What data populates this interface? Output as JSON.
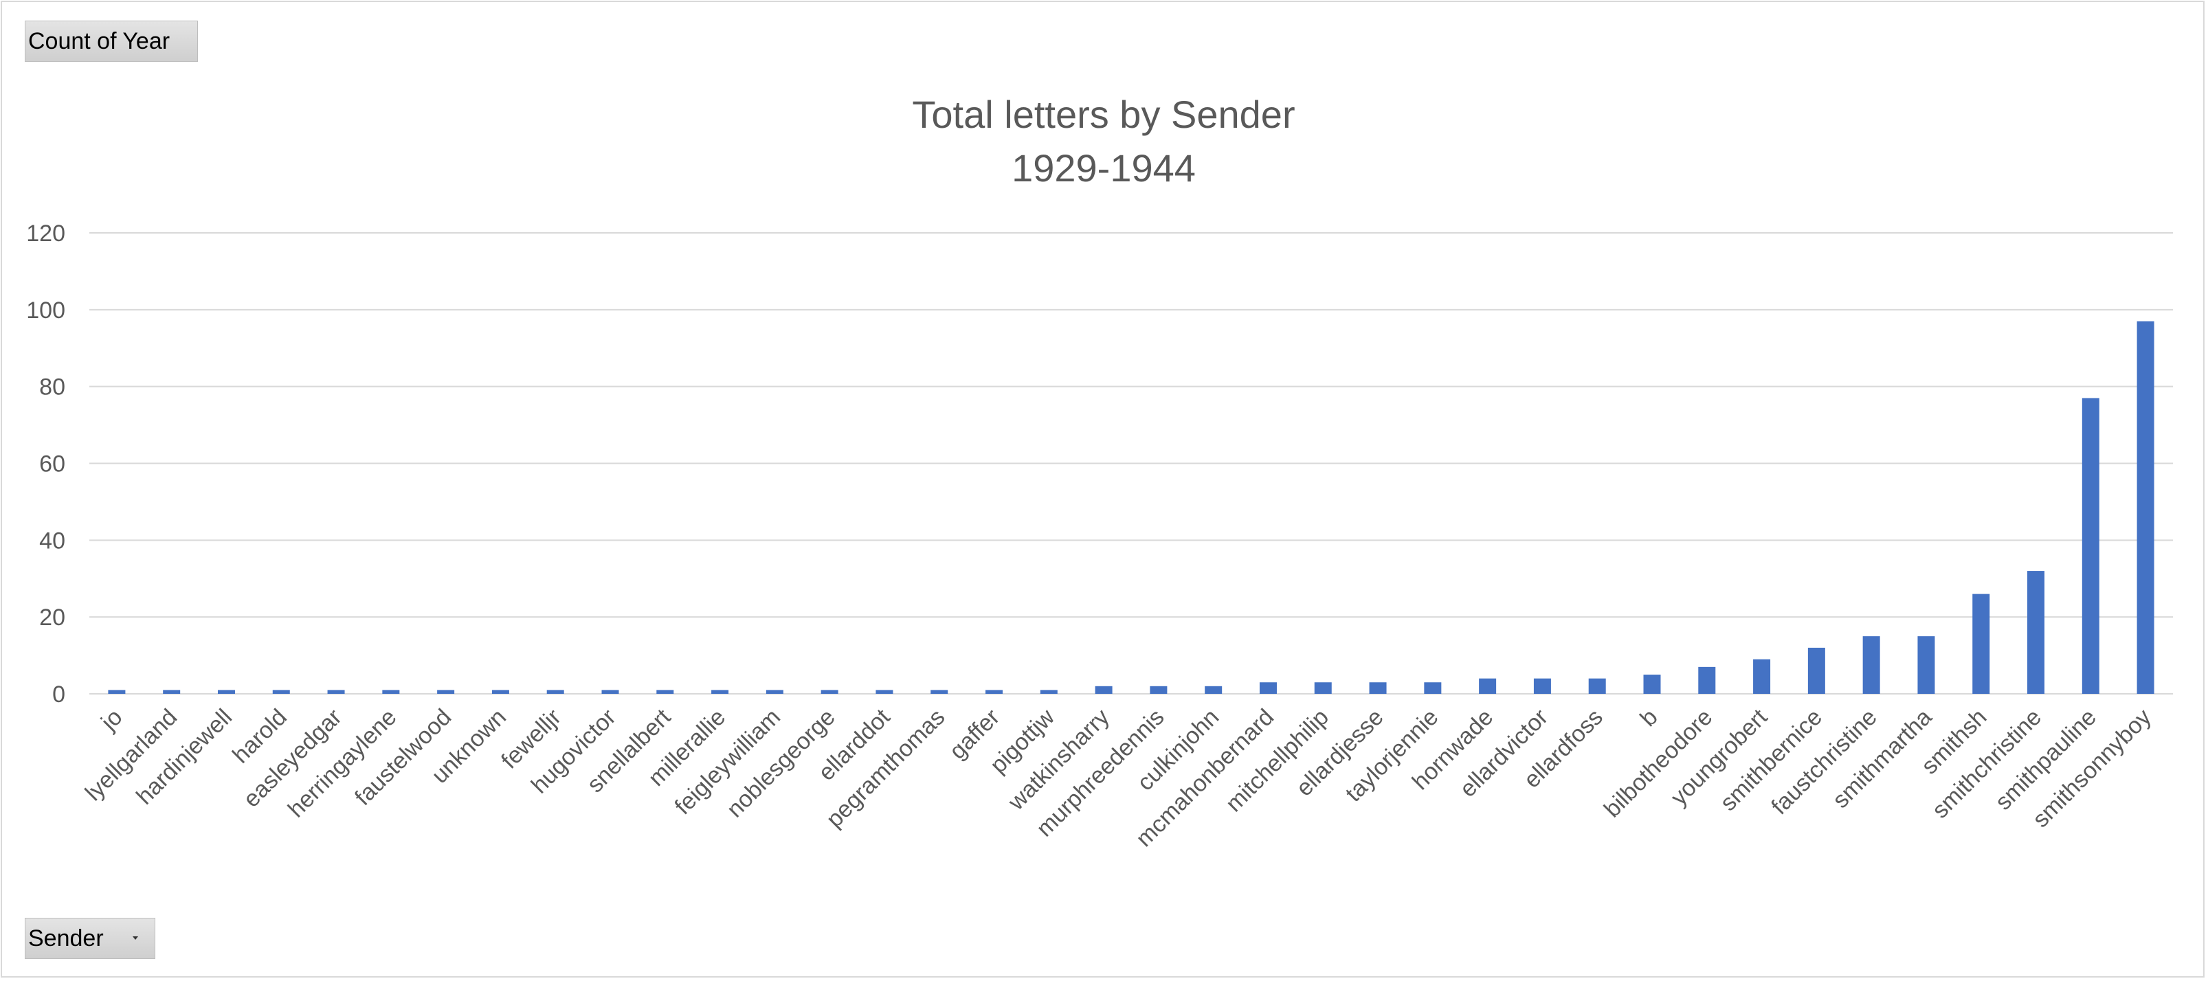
{
  "pivot": {
    "value_field": "Count of Year",
    "axis_field": "Sender"
  },
  "colors": {
    "bar": "#4472c4"
  },
  "chart_data": {
    "type": "bar",
    "title": [
      "Total letters by Sender",
      "1929-1944"
    ],
    "xlabel": "",
    "ylabel": "",
    "ylim": [
      0,
      120
    ],
    "yticks": [
      0,
      20,
      40,
      60,
      80,
      100,
      120
    ],
    "grid": true,
    "categories": [
      "jo",
      "lyellgarland",
      "hardinjewell",
      "harold",
      "easleyedgar",
      "herringaylene",
      "faustelwood",
      "unknown",
      "fewelljr",
      "hugovictor",
      "snellalbert",
      "millerallie",
      "feigleywilliam",
      "noblesgeorge",
      "ellarddot",
      "pegramthomas",
      "gaffer",
      "pigottjw",
      "watkinsharry",
      "murphreedennis",
      "culkinjohn",
      "mcmahonbernard",
      "mitchellphilip",
      "ellardjesse",
      "taylorjennie",
      "hornwade",
      "ellardvictor",
      "ellardfoss",
      "b",
      "bilbotheodore",
      "youngrobert",
      "smithbernice",
      "faustchristine",
      "smithmartha",
      "smithsh",
      "smithchristine",
      "smithpauline",
      "smithsonnyboy"
    ],
    "series": [
      {
        "values": [
          1,
          1,
          1,
          1,
          1,
          1,
          1,
          1,
          1,
          1,
          1,
          1,
          1,
          1,
          1,
          1,
          1,
          1,
          2,
          2,
          2,
          3,
          3,
          3,
          3,
          4,
          4,
          4,
          5,
          7,
          9,
          12,
          15,
          15,
          26,
          32,
          77,
          97
        ]
      }
    ]
  }
}
